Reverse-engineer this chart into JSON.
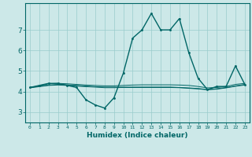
{
  "xlabel": "Humidex (Indice chaleur)",
  "bg_color": "#cce8e8",
  "grid_color": "#99cccc",
  "line_color": "#006666",
  "x_ticks": [
    0,
    1,
    2,
    3,
    4,
    5,
    6,
    7,
    8,
    9,
    10,
    11,
    12,
    13,
    14,
    15,
    16,
    17,
    18,
    19,
    20,
    21,
    22,
    23
  ],
  "y_ticks": [
    3,
    4,
    5,
    6,
    7
  ],
  "ylim": [
    2.5,
    8.3
  ],
  "xlim": [
    -0.5,
    23.5
  ],
  "lines": [
    {
      "x": [
        0,
        1,
        2,
        3,
        4,
        5,
        6,
        7,
        8,
        9,
        10,
        11,
        12,
        13,
        14,
        15,
        16,
        17,
        18,
        19,
        20,
        21,
        22,
        23
      ],
      "y": [
        4.2,
        4.3,
        4.4,
        4.4,
        4.3,
        4.2,
        3.6,
        3.35,
        3.2,
        3.7,
        4.9,
        6.6,
        7.0,
        7.8,
        7.0,
        7.0,
        7.55,
        5.9,
        4.65,
        4.1,
        4.25,
        4.25,
        5.25,
        4.35
      ],
      "marker": true
    },
    {
      "x": [
        0,
        1,
        2,
        3,
        4,
        5,
        6,
        7,
        8,
        9,
        10,
        11,
        12,
        13,
        14,
        15,
        16,
        17,
        18,
        19,
        20,
        21,
        22,
        23
      ],
      "y": [
        4.2,
        4.28,
        4.38,
        4.4,
        4.38,
        4.35,
        4.32,
        4.3,
        4.28,
        4.28,
        4.3,
        4.32,
        4.33,
        4.33,
        4.33,
        4.33,
        4.32,
        4.3,
        4.25,
        4.18,
        4.2,
        4.25,
        4.35,
        4.4
      ],
      "marker": false
    },
    {
      "x": [
        0,
        1,
        2,
        3,
        4,
        5,
        6,
        7,
        8,
        9,
        10,
        11,
        12,
        13,
        14,
        15,
        16,
        17,
        18,
        19,
        20,
        21,
        22,
        23
      ],
      "y": [
        4.2,
        4.26,
        4.32,
        4.35,
        4.33,
        4.3,
        4.27,
        4.24,
        4.22,
        4.22,
        4.22,
        4.22,
        4.22,
        4.22,
        4.22,
        4.22,
        4.2,
        4.18,
        4.15,
        4.1,
        4.14,
        4.2,
        4.28,
        4.35
      ],
      "marker": false
    },
    {
      "x": [
        0,
        1,
        2,
        3,
        4,
        5,
        6,
        7,
        8,
        9,
        10,
        11,
        12,
        13,
        14,
        15,
        16,
        17,
        18,
        19,
        20,
        21,
        22,
        23
      ],
      "y": [
        4.18,
        4.24,
        4.3,
        4.32,
        4.3,
        4.27,
        4.24,
        4.22,
        4.19,
        4.19,
        4.2,
        4.2,
        4.2,
        4.2,
        4.2,
        4.2,
        4.19,
        4.16,
        4.13,
        4.09,
        4.12,
        4.18,
        4.26,
        4.32
      ],
      "marker": false
    }
  ]
}
